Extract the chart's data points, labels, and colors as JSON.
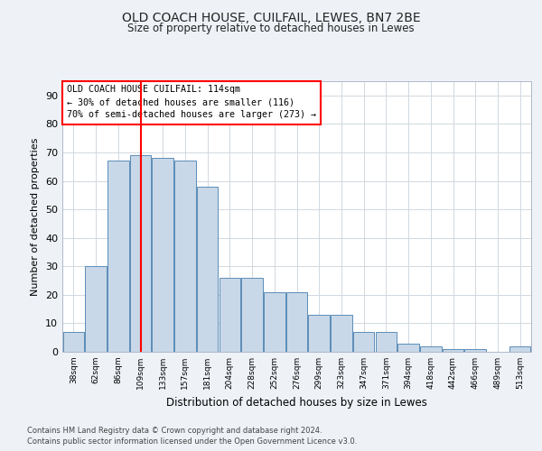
{
  "title1": "OLD COACH HOUSE, CUILFAIL, LEWES, BN7 2BE",
  "title2": "Size of property relative to detached houses in Lewes",
  "xlabel": "Distribution of detached houses by size in Lewes",
  "ylabel": "Number of detached properties",
  "categories": [
    "38sqm",
    "62sqm",
    "86sqm",
    "109sqm",
    "133sqm",
    "157sqm",
    "181sqm",
    "204sqm",
    "228sqm",
    "252sqm",
    "276sqm",
    "299sqm",
    "323sqm",
    "347sqm",
    "371sqm",
    "394sqm",
    "418sqm",
    "442sqm",
    "466sqm",
    "489sqm",
    "513sqm"
  ],
  "values": [
    7,
    30,
    67,
    69,
    68,
    67,
    58,
    26,
    26,
    21,
    21,
    13,
    13,
    7,
    7,
    3,
    2,
    1,
    1,
    0,
    2
  ],
  "bar_color": "#c8d8e8",
  "bar_edge_color": "#5b8db8",
  "ylim": [
    0,
    95
  ],
  "yticks": [
    0,
    10,
    20,
    30,
    40,
    50,
    60,
    70,
    80,
    90
  ],
  "property_bin_index": 3,
  "annotation_title": "OLD COACH HOUSE CUILFAIL: 114sqm",
  "annotation_line1": "← 30% of detached houses are smaller (116)",
  "annotation_line2": "70% of semi-detached houses are larger (273) →",
  "footer1": "Contains HM Land Registry data © Crown copyright and database right 2024.",
  "footer2": "Contains public sector information licensed under the Open Government Licence v3.0.",
  "bg_color": "#eef2f7",
  "plot_bg_color": "#ffffff",
  "grid_color": "#d0d8e0"
}
